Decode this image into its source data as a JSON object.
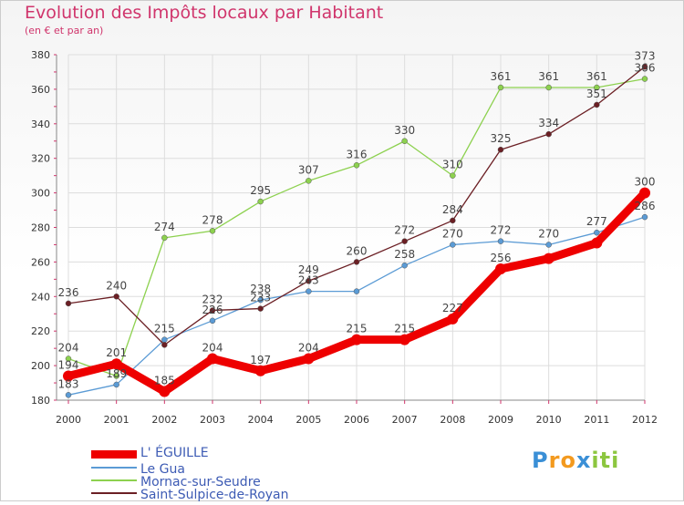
{
  "header": {
    "title": "Evolution des Impôts locaux par Habitant",
    "subtitle": "(en € et par an)"
  },
  "brand": {
    "letters": [
      {
        "ch": "P",
        "color": "#3a8fd6"
      },
      {
        "ch": "r",
        "color": "#f39a1f"
      },
      {
        "ch": "o",
        "color": "#f39a1f"
      },
      {
        "ch": "x",
        "color": "#3a8fd6"
      },
      {
        "ch": "i",
        "color": "#8cc63f"
      },
      {
        "ch": "t",
        "color": "#8cc63f"
      },
      {
        "ch": "i",
        "color": "#8cc63f"
      }
    ]
  },
  "chart_data": {
    "type": "line",
    "title": "Evolution des Impôts locaux par Habitant",
    "subtitle": "(en € et par an)",
    "xlabel": "",
    "ylabel": "",
    "x": [
      "2000",
      "2001",
      "2002",
      "2003",
      "2004",
      "2005",
      "2006",
      "2007",
      "2008",
      "2009",
      "2010",
      "2011",
      "2012"
    ],
    "yticks": [
      180,
      200,
      220,
      240,
      260,
      280,
      300,
      320,
      340,
      360,
      380
    ],
    "ylim": [
      180,
      380
    ],
    "grid": true,
    "legend_position": "bottom-left",
    "series": [
      {
        "name": "L' ÉGUILLE",
        "color": "#ee0000",
        "width": "thick",
        "values": [
          194,
          201,
          185,
          204,
          197,
          204,
          215,
          215,
          227,
          256,
          262,
          271,
          300
        ],
        "labels": [
          "194",
          "201",
          "185",
          "204",
          "197",
          "204",
          "215",
          "215",
          "227",
          "256",
          "",
          "",
          "300"
        ]
      },
      {
        "name": "Le Gua",
        "color": "#5b9bd5",
        "width": "thin",
        "values": [
          183,
          189,
          215,
          226,
          238,
          243,
          243,
          258,
          270,
          272,
          270,
          277,
          286
        ],
        "labels": [
          "183",
          "189",
          "215",
          "226",
          "238",
          "243",
          "",
          "258",
          "270",
          "272",
          "270",
          "277",
          "286"
        ]
      },
      {
        "name": "Mornac-sur-Seudre",
        "color": "#8dd14f",
        "width": "thin",
        "values": [
          204,
          194,
          274,
          278,
          295,
          307,
          316,
          330,
          310,
          361,
          361,
          361,
          366
        ],
        "labels": [
          "204",
          "",
          "274",
          "278",
          "295",
          "307",
          "316",
          "330",
          "310",
          "361",
          "361",
          "361",
          "366"
        ]
      },
      {
        "name": "Saint-Sulpice-de-Royan",
        "color": "#6b1f24",
        "width": "thin",
        "values": [
          236,
          240,
          212,
          232,
          233,
          249,
          260,
          272,
          284,
          325,
          334,
          351,
          373
        ],
        "labels": [
          "236",
          "240",
          "",
          "232",
          "233",
          "249",
          "260",
          "272",
          "284",
          "325",
          "334",
          "351",
          "373"
        ]
      }
    ]
  }
}
